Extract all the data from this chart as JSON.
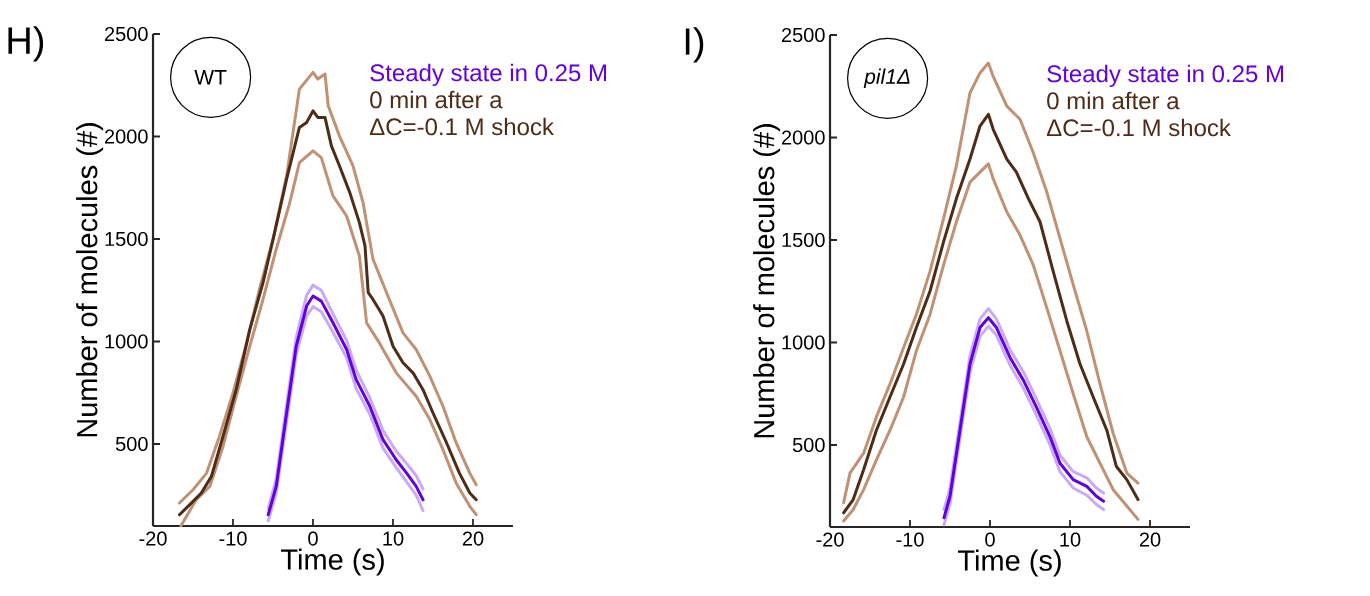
{
  "chart_data": [
    {
      "type": "line",
      "xlabel": "Time (s)",
      "ylabel": "Number of molecules (#)",
      "xlim": [
        -20,
        25
      ],
      "ylim": [
        100,
        2500
      ],
      "xticks": [
        -20,
        -10,
        0,
        10,
        20
      ],
      "yticks": [
        500,
        1000,
        1500,
        2000,
        2500
      ],
      "legend": "top right",
      "annotations": [
        "H)",
        "WT"
      ],
      "series": [
        {
          "color": "#c09275",
          "x": [
            -16.7,
            -15,
            -13.3,
            -11.7,
            -10,
            -8.3,
            -6.7,
            -5,
            -3.3,
            -1.7,
            0,
            0.6,
            1.5,
            1.9,
            3.3,
            5,
            6.25,
            7.5,
            9.2,
            11.25,
            12.9,
            14.6,
            16.25,
            17.9,
            19.6,
            20.4
          ],
          "values": [
            212,
            277,
            358,
            537,
            749,
            993,
            1254,
            1498,
            1808,
            2231,
            2313,
            2280,
            2305,
            2150,
            2003,
            1857,
            1678,
            1401,
            1238,
            1042,
            961,
            831,
            684,
            505,
            358,
            301
          ]
        },
        {
          "color": "#c09275",
          "x": [
            -16.5,
            -14.6,
            -12.9,
            -11.25,
            -9.6,
            -7.9,
            -6.25,
            -4.6,
            -2.9,
            -1.7,
            0,
            1.04,
            2.5,
            4.2,
            5.8,
            6.7,
            8.3,
            10.4,
            12.9,
            14.6,
            16.25,
            17.9,
            19.6,
            20.4
          ],
          "values": [
            101,
            228,
            293,
            488,
            733,
            977,
            1205,
            1450,
            1678,
            1873,
            1930,
            1897,
            1710,
            1612,
            1417,
            1091,
            993,
            847,
            733,
            619,
            472,
            309,
            196,
            155
          ]
        },
        {
          "color": "#c9aaf5",
          "x": [
            -5.6,
            -4.6,
            -3.3,
            -2.1,
            -0.8,
            0,
            1.04,
            2.5,
            4.2,
            5.4,
            7.1,
            8.75,
            10.4,
            11.7,
            12.9,
            13.75
          ],
          "values": [
            185,
            330,
            690,
            1020,
            1225,
            1275,
            1250,
            1135,
            1005,
            860,
            725,
            565,
            465,
            405,
            345,
            280
          ]
        },
        {
          "color": "#c9aaf5",
          "x": [
            -5.6,
            -4.6,
            -3.3,
            -2.1,
            -0.8,
            0,
            1.04,
            2.5,
            4.2,
            5.4,
            7.1,
            8.75,
            10.4,
            11.7,
            12.9,
            13.75
          ],
          "values": [
            125,
            260,
            610,
            935,
            1125,
            1170,
            1145,
            1045,
            920,
            770,
            645,
            480,
            385,
            315,
            250,
            175
          ]
        },
        {
          "name": "Steady state in 0.25 M",
          "color": "#6200e0",
          "x": [
            -5.6,
            -4.6,
            -3.3,
            -2.1,
            -0.8,
            0,
            1.04,
            2.5,
            4.2,
            5.4,
            7.1,
            8.75,
            10.4,
            11.7,
            12.9,
            13.75
          ],
          "values": [
            155,
            293,
            651,
            977,
            1173,
            1222,
            1197,
            1091,
            961,
            814,
            684,
            521,
            423,
            358,
            293,
            228
          ]
        },
        {
          "name": "0 min after a ΔC=-0.1 M shock",
          "color": "#4e2c17",
          "x": [
            -16.7,
            -15.4,
            -13.96,
            -12.7,
            -11.25,
            -9.6,
            -7.9,
            -6.25,
            -4.8,
            -3.3,
            -1.7,
            -0.8,
            0,
            0.6,
            1.5,
            2.3,
            3.3,
            4.6,
            5.8,
            6.5,
            6.9,
            7.5,
            8.75,
            10,
            11.25,
            12.5,
            13.75,
            15,
            16.7,
            18.3,
            19.6,
            20.4
          ],
          "values": [
            155,
            204,
            261,
            342,
            537,
            765,
            1059,
            1287,
            1531,
            1792,
            2044,
            2068,
            2125,
            2093,
            2093,
            1954,
            1857,
            1726,
            1580,
            1466,
            1238,
            1205,
            1124,
            977,
            896,
            847,
            765,
            651,
            505,
            358,
            261,
            228
          ]
        }
      ]
    },
    {
      "type": "line",
      "xlabel": "Time (s)",
      "ylabel": "Number of molecules (#)",
      "xlim": [
        -20,
        25
      ],
      "ylim": [
        100,
        2500
      ],
      "xticks": [
        -20,
        -10,
        0,
        10,
        20
      ],
      "yticks": [
        500,
        1000,
        1500,
        2000,
        2500
      ],
      "legend": "top right",
      "annotations": [
        "I)",
        "pil1Δ"
      ],
      "series": [
        {
          "color": "#c09275",
          "x": [
            -18.3,
            -17.5,
            -15.8,
            -14.2,
            -12.5,
            -10.8,
            -9.2,
            -7.5,
            -5.8,
            -4.2,
            -2.5,
            -1.25,
            -0.2,
            0.4,
            2.1,
            3.75,
            5.4,
            7.1,
            8.75,
            10.4,
            12.1,
            13.75,
            15.4,
            17.1,
            18.5
          ],
          "values": [
            218,
            363,
            460,
            637,
            798,
            976,
            1137,
            1347,
            1605,
            1863,
            2218,
            2315,
            2363,
            2298,
            2153,
            2089,
            1927,
            1734,
            1508,
            1282,
            1056,
            798,
            556,
            363,
            314
          ]
        },
        {
          "color": "#c09275",
          "x": [
            -18.3,
            -17.1,
            -15.8,
            -14.2,
            -12.5,
            -10.8,
            -9.2,
            -7.5,
            -5.8,
            -4.2,
            -2.5,
            -1.25,
            -0.2,
            0.4,
            2.1,
            3.75,
            5.4,
            7.1,
            8.75,
            10.4,
            12.1,
            13.75,
            15.4,
            17.1,
            18.5
          ],
          "values": [
            129,
            185,
            282,
            427,
            572,
            734,
            960,
            1137,
            1379,
            1589,
            1782,
            1831,
            1871,
            1798,
            1637,
            1524,
            1379,
            1169,
            960,
            750,
            540,
            411,
            282,
            202,
            137
          ]
        },
        {
          "color": "#c9aaf5",
          "x": [
            -5.75,
            -5,
            -3.75,
            -2.5,
            -1.25,
            -0.2,
            0.8,
            2.5,
            4.2,
            5.8,
            7.5,
            8.75,
            10.4,
            12.1,
            13.3,
            14.2
          ],
          "values": [
            185,
            290,
            610,
            935,
            1115,
            1165,
            1115,
            965,
            855,
            725,
            580,
            450,
            370,
            340,
            290,
            265
          ]
        },
        {
          "color": "#c9aaf5",
          "x": [
            -5.75,
            -5,
            -3.75,
            -2.5,
            -1.25,
            -0.2,
            0.8,
            2.5,
            4.2,
            5.8,
            7.5,
            8.75,
            10.4,
            12.1,
            13.3,
            14.2
          ],
          "values": [
            110,
            215,
            535,
            855,
            1030,
            1080,
            1035,
            890,
            775,
            645,
            500,
            370,
            290,
            255,
            210,
            185
          ]
        },
        {
          "name": "Steady state in 0.25 M",
          "color": "#6200e0",
          "x": [
            -5.75,
            -5,
            -3.75,
            -2.5,
            -1.25,
            -0.2,
            0.8,
            2.5,
            4.2,
            5.8,
            7.5,
            8.75,
            10.4,
            12.1,
            13.3,
            14.2
          ],
          "values": [
            145,
            250,
            573,
            895,
            1073,
            1121,
            1073,
            927,
            814,
            685,
            540,
            411,
            331,
            298,
            250,
            226
          ]
        },
        {
          "name": "0 min after a ΔC=-0.1 M shock",
          "color": "#4e2c17",
          "x": [
            -18.3,
            -17.1,
            -15.8,
            -14.2,
            -12.5,
            -10.8,
            -9.2,
            -7.5,
            -5.8,
            -4.2,
            -2.5,
            -1.25,
            -0.2,
            0.4,
            2.1,
            3.3,
            4.8,
            6.25,
            7.9,
            9.6,
            11.25,
            12.9,
            14.6,
            15.8,
            17.1,
            18.5
          ],
          "values": [
            169,
            234,
            379,
            572,
            734,
            895,
            1073,
            1250,
            1492,
            1702,
            1895,
            2056,
            2113,
            2040,
            1895,
            1831,
            1702,
            1589,
            1347,
            1105,
            895,
            734,
            572,
            395,
            331,
            234
          ]
        }
      ]
    }
  ]
}
